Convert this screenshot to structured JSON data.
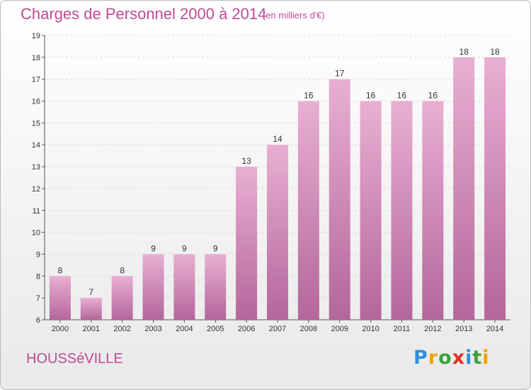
{
  "title": "Charges de Personnel 2000 à 2014",
  "subtitle": "(en milliers d'€)",
  "commune": "HOUSSéVILLE",
  "logo": {
    "letters": [
      {
        "ch": "P",
        "color": "#2f8fd8"
      },
      {
        "ch": "r",
        "color": "#f2a100"
      },
      {
        "ch": "o",
        "color": "#3aa23a"
      },
      {
        "ch": "x",
        "color": "#e0301e"
      },
      {
        "ch": "i",
        "color": "#2f8fd8"
      },
      {
        "ch": "t",
        "color": "#3aa23a"
      },
      {
        "ch": "i",
        "color": "#f2a100"
      }
    ]
  },
  "colors": {
    "accent": "#c14a96",
    "bar_top": "#e9afd3",
    "bar_bottom": "#b3669a"
  },
  "chart_data": {
    "type": "bar",
    "categories": [
      "2000",
      "2001",
      "2002",
      "2003",
      "2004",
      "2005",
      "2006",
      "2007",
      "2008",
      "2009",
      "2010",
      "2011",
      "2012",
      "2013",
      "2014"
    ],
    "values": [
      8,
      7,
      8,
      9,
      9,
      9,
      13,
      14,
      16,
      17,
      16,
      16,
      16,
      18,
      18
    ],
    "ylim": [
      6,
      19
    ],
    "yticks": [
      6,
      7,
      8,
      9,
      10,
      11,
      12,
      13,
      14,
      15,
      16,
      17,
      18,
      19
    ],
    "grid": true,
    "legend": "none"
  }
}
